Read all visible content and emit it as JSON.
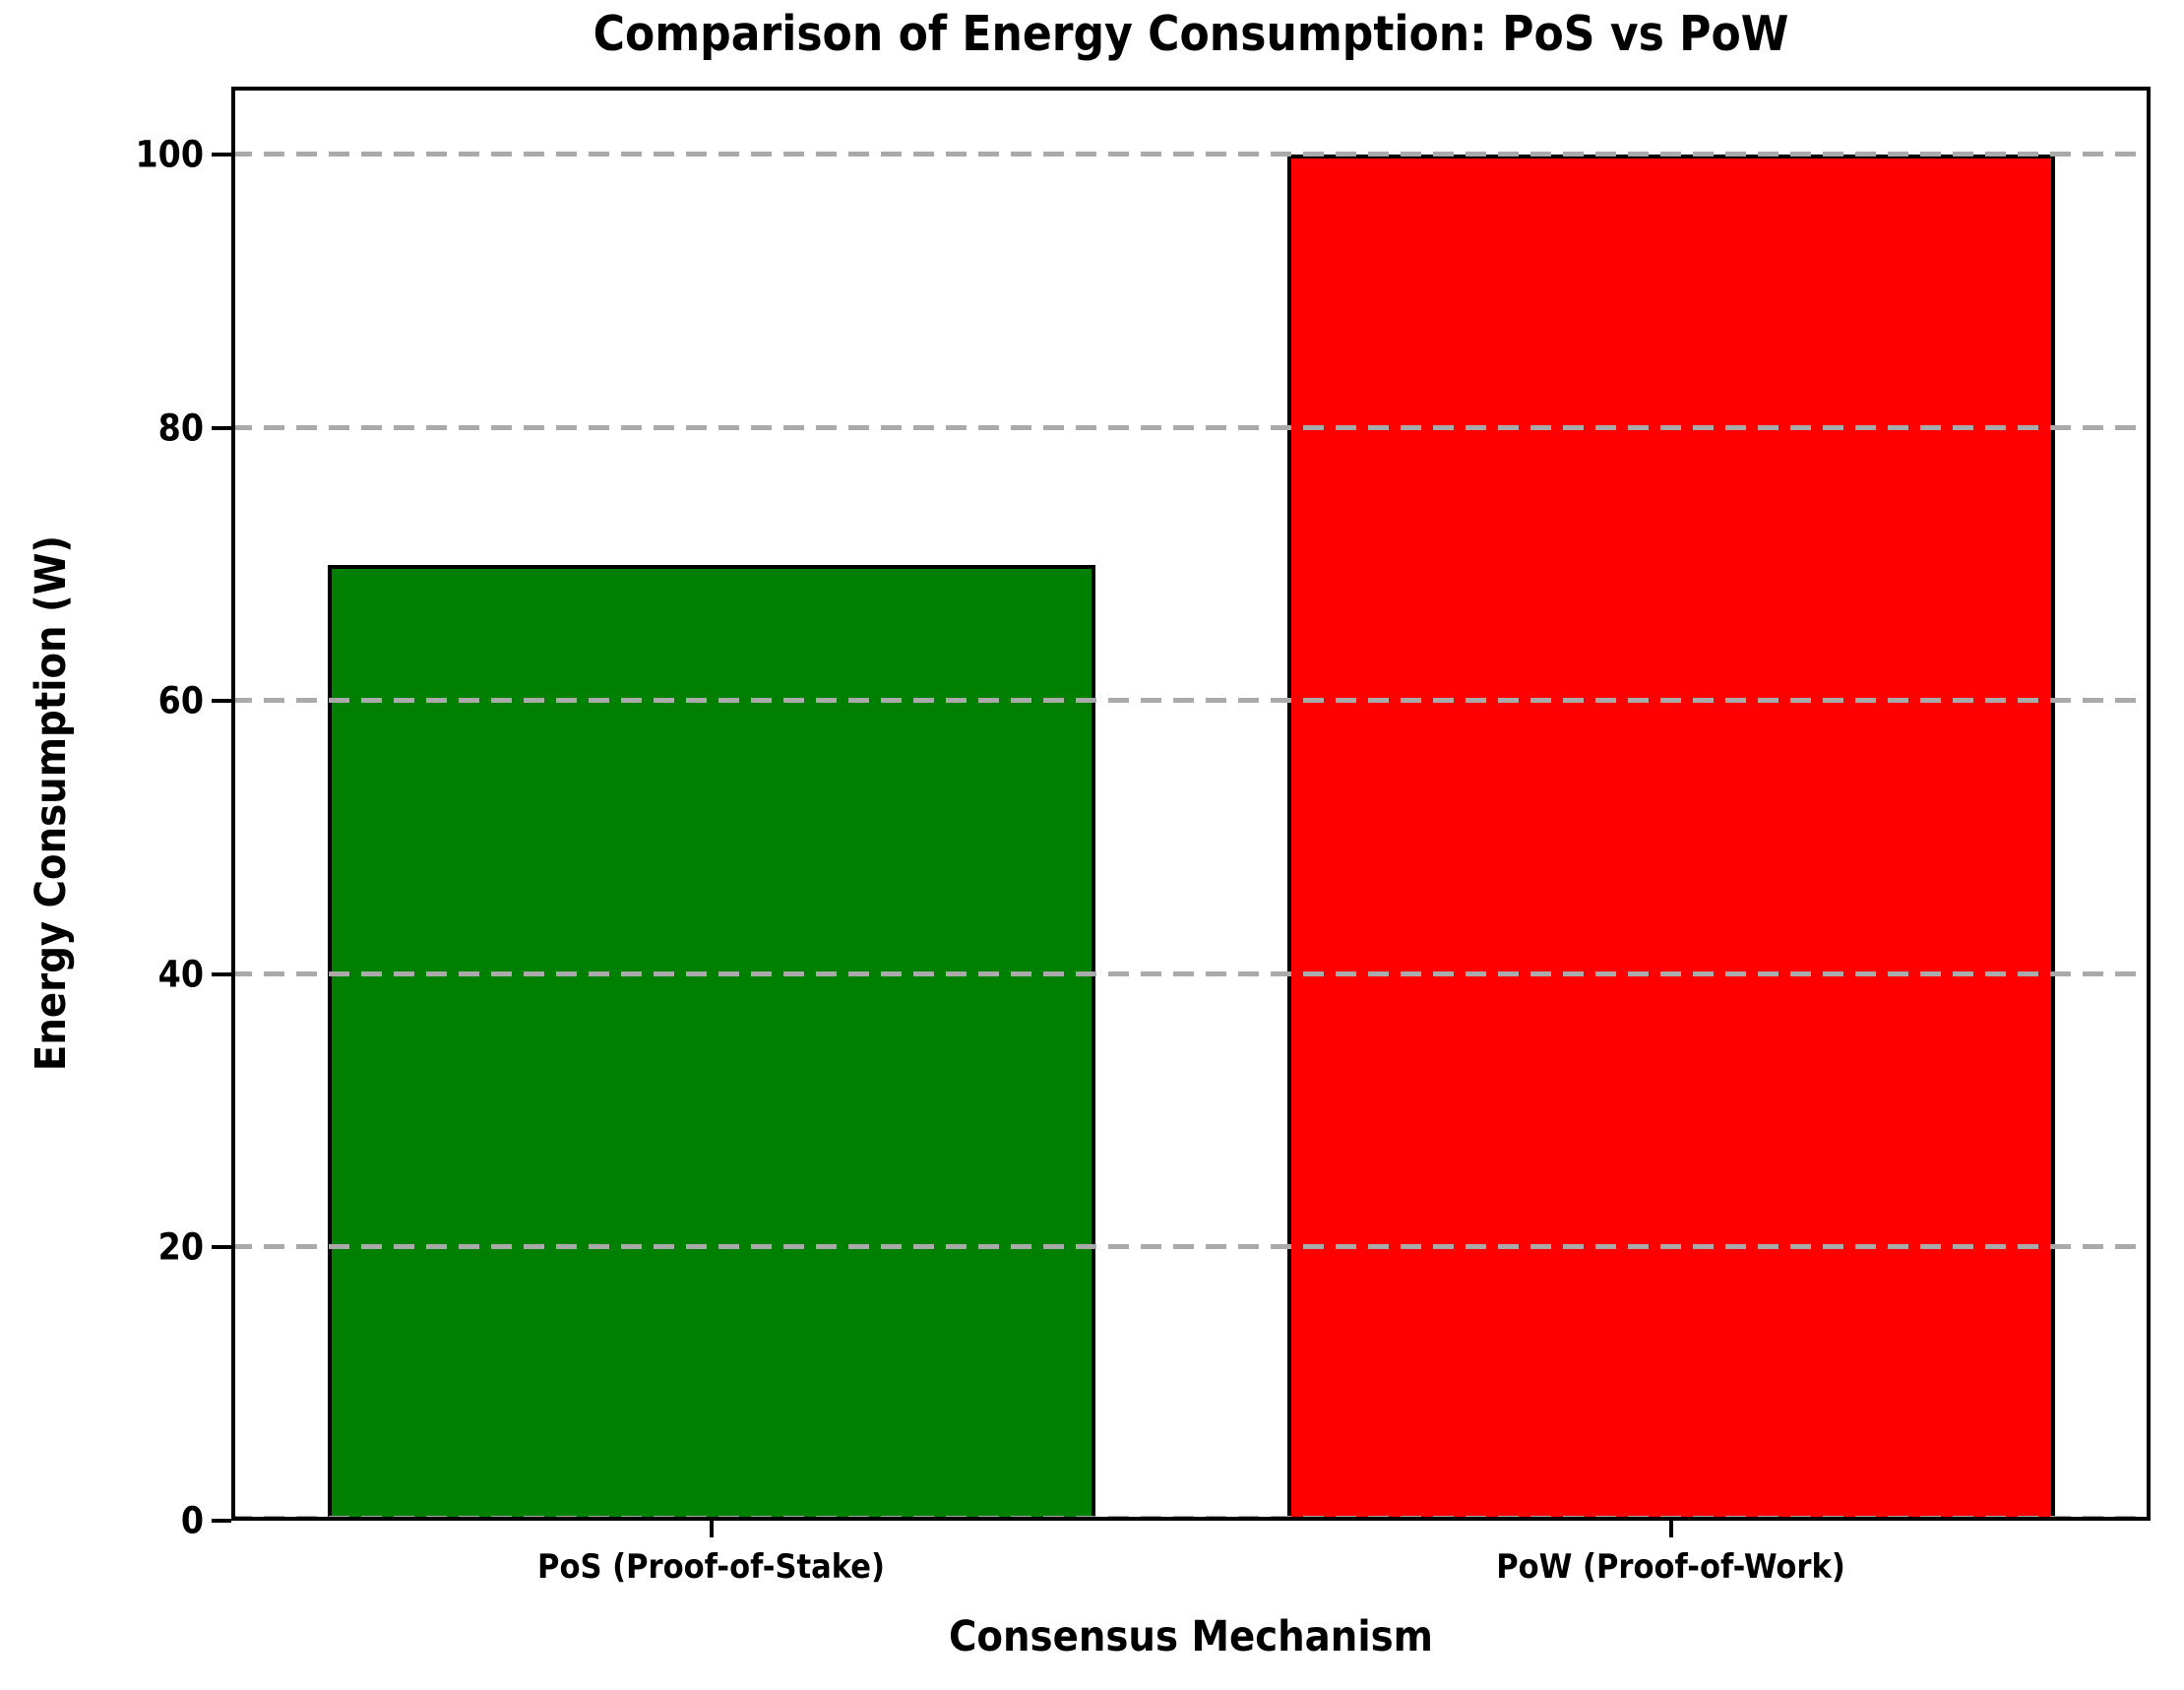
{
  "chart_data": {
    "type": "bar",
    "title": "Comparison of Energy Consumption: PoS vs PoW",
    "xlabel": "Consensus Mechanism",
    "ylabel": "Energy Consumption (W)",
    "categories": [
      "PoS (Proof-of-Stake)",
      "PoW (Proof-of-Work)"
    ],
    "values": [
      70,
      100
    ],
    "bar_colors": [
      "#008000",
      "#ff0000"
    ],
    "bar_edge_color": "#000000",
    "bar_width_fraction": 0.8,
    "yticks": [
      0,
      20,
      40,
      60,
      80,
      100
    ],
    "ylim": [
      0,
      105
    ],
    "grid": true,
    "grid_color": "#aaaaaa",
    "grid_style": "dashed",
    "grid_above_bars": true,
    "legend": "none",
    "frame_color": "#000000",
    "background_color": "#ffffff"
  }
}
